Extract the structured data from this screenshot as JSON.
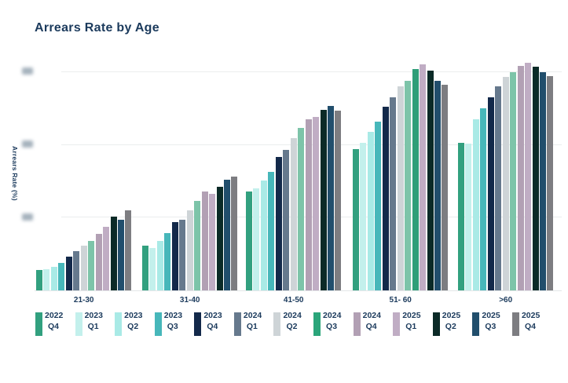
{
  "chart_data": {
    "type": "bar",
    "title": "Arrears Rate by Age",
    "xlabel": "",
    "ylabel": "Arrears Rate (%)",
    "categories": [
      "21-30",
      "31-40",
      "41-50",
      "51- 60",
      ">60"
    ],
    "y_axis": {
      "tick_labels_visible": false,
      "note": "three y-axis tick labels are blurred/redacted in the image",
      "blurred_tick_count": 3,
      "gridline_values": [
        1,
        2,
        3
      ],
      "ylim": [
        0,
        3.25
      ],
      "units": "gridline units (tick numbers illegible)"
    },
    "legend_position": "bottom",
    "grid": true,
    "series": [
      {
        "year": "2022",
        "quarter": "Q4",
        "color": "#32a07f",
        "values": [
          0.28,
          0.61,
          1.36,
          1.94,
          2.03
        ]
      },
      {
        "year": "2023",
        "quarter": "Q1",
        "color": "#c3f0ec",
        "values": [
          0.29,
          0.58,
          1.4,
          2.03,
          2.02
        ]
      },
      {
        "year": "2023",
        "quarter": "Q2",
        "color": "#a9eae6",
        "values": [
          0.32,
          0.68,
          1.51,
          2.18,
          2.35
        ]
      },
      {
        "year": "2023",
        "quarter": "Q3",
        "color": "#47b7ba",
        "values": [
          0.38,
          0.79,
          1.63,
          2.32,
          2.5
        ]
      },
      {
        "year": "2023",
        "quarter": "Q4",
        "color": "#13294a",
        "values": [
          0.46,
          0.94,
          1.83,
          2.52,
          2.65
        ]
      },
      {
        "year": "2024",
        "quarter": "Q1",
        "color": "#66798d",
        "values": [
          0.54,
          0.97,
          1.93,
          2.65,
          2.81
        ]
      },
      {
        "year": "2024",
        "quarter": "Q2",
        "color": "#ced4d7",
        "values": [
          0.62,
          1.1,
          2.09,
          2.81,
          2.93
        ]
      },
      {
        "year": "2024",
        "quarter": "Q3",
        "color": "#7dc4a9",
        "swatch_color": "#2ba57a",
        "values": [
          0.68,
          1.23,
          2.23,
          2.88,
          3.0
        ]
      },
      {
        "year": "2024",
        "quarter": "Q4",
        "color": "#b2a0b4",
        "values": [
          0.78,
          1.36,
          2.35,
          3.04,
          3.09
        ]
      },
      {
        "year": "2025",
        "quarter": "Q1",
        "color": "#c0adc4",
        "values": [
          0.87,
          1.33,
          2.38,
          3.11,
          3.13
        ]
      },
      {
        "year": "2025",
        "quarter": "Q2",
        "color": "#0b2a27",
        "values": [
          1.01,
          1.42,
          2.48,
          3.02,
          3.08
        ]
      },
      {
        "year": "2025",
        "quarter": "Q3",
        "color": "#214e6c",
        "values": [
          0.97,
          1.52,
          2.54,
          2.88,
          3.0
        ]
      },
      {
        "year": "2025",
        "quarter": "Q4",
        "color": "#7d7d81",
        "values": [
          1.1,
          1.56,
          2.47,
          2.83,
          2.95
        ]
      }
    ],
    "bar_color_overrides": [
      {
        "category_index": 3,
        "series_index": 8,
        "color": "#2f9e78"
      }
    ],
    "colors": {
      "title_text": "#1b3a5c",
      "axis_text": "#1b3a5c",
      "gridline": "#ebedee",
      "background": "#ffffff"
    }
  }
}
